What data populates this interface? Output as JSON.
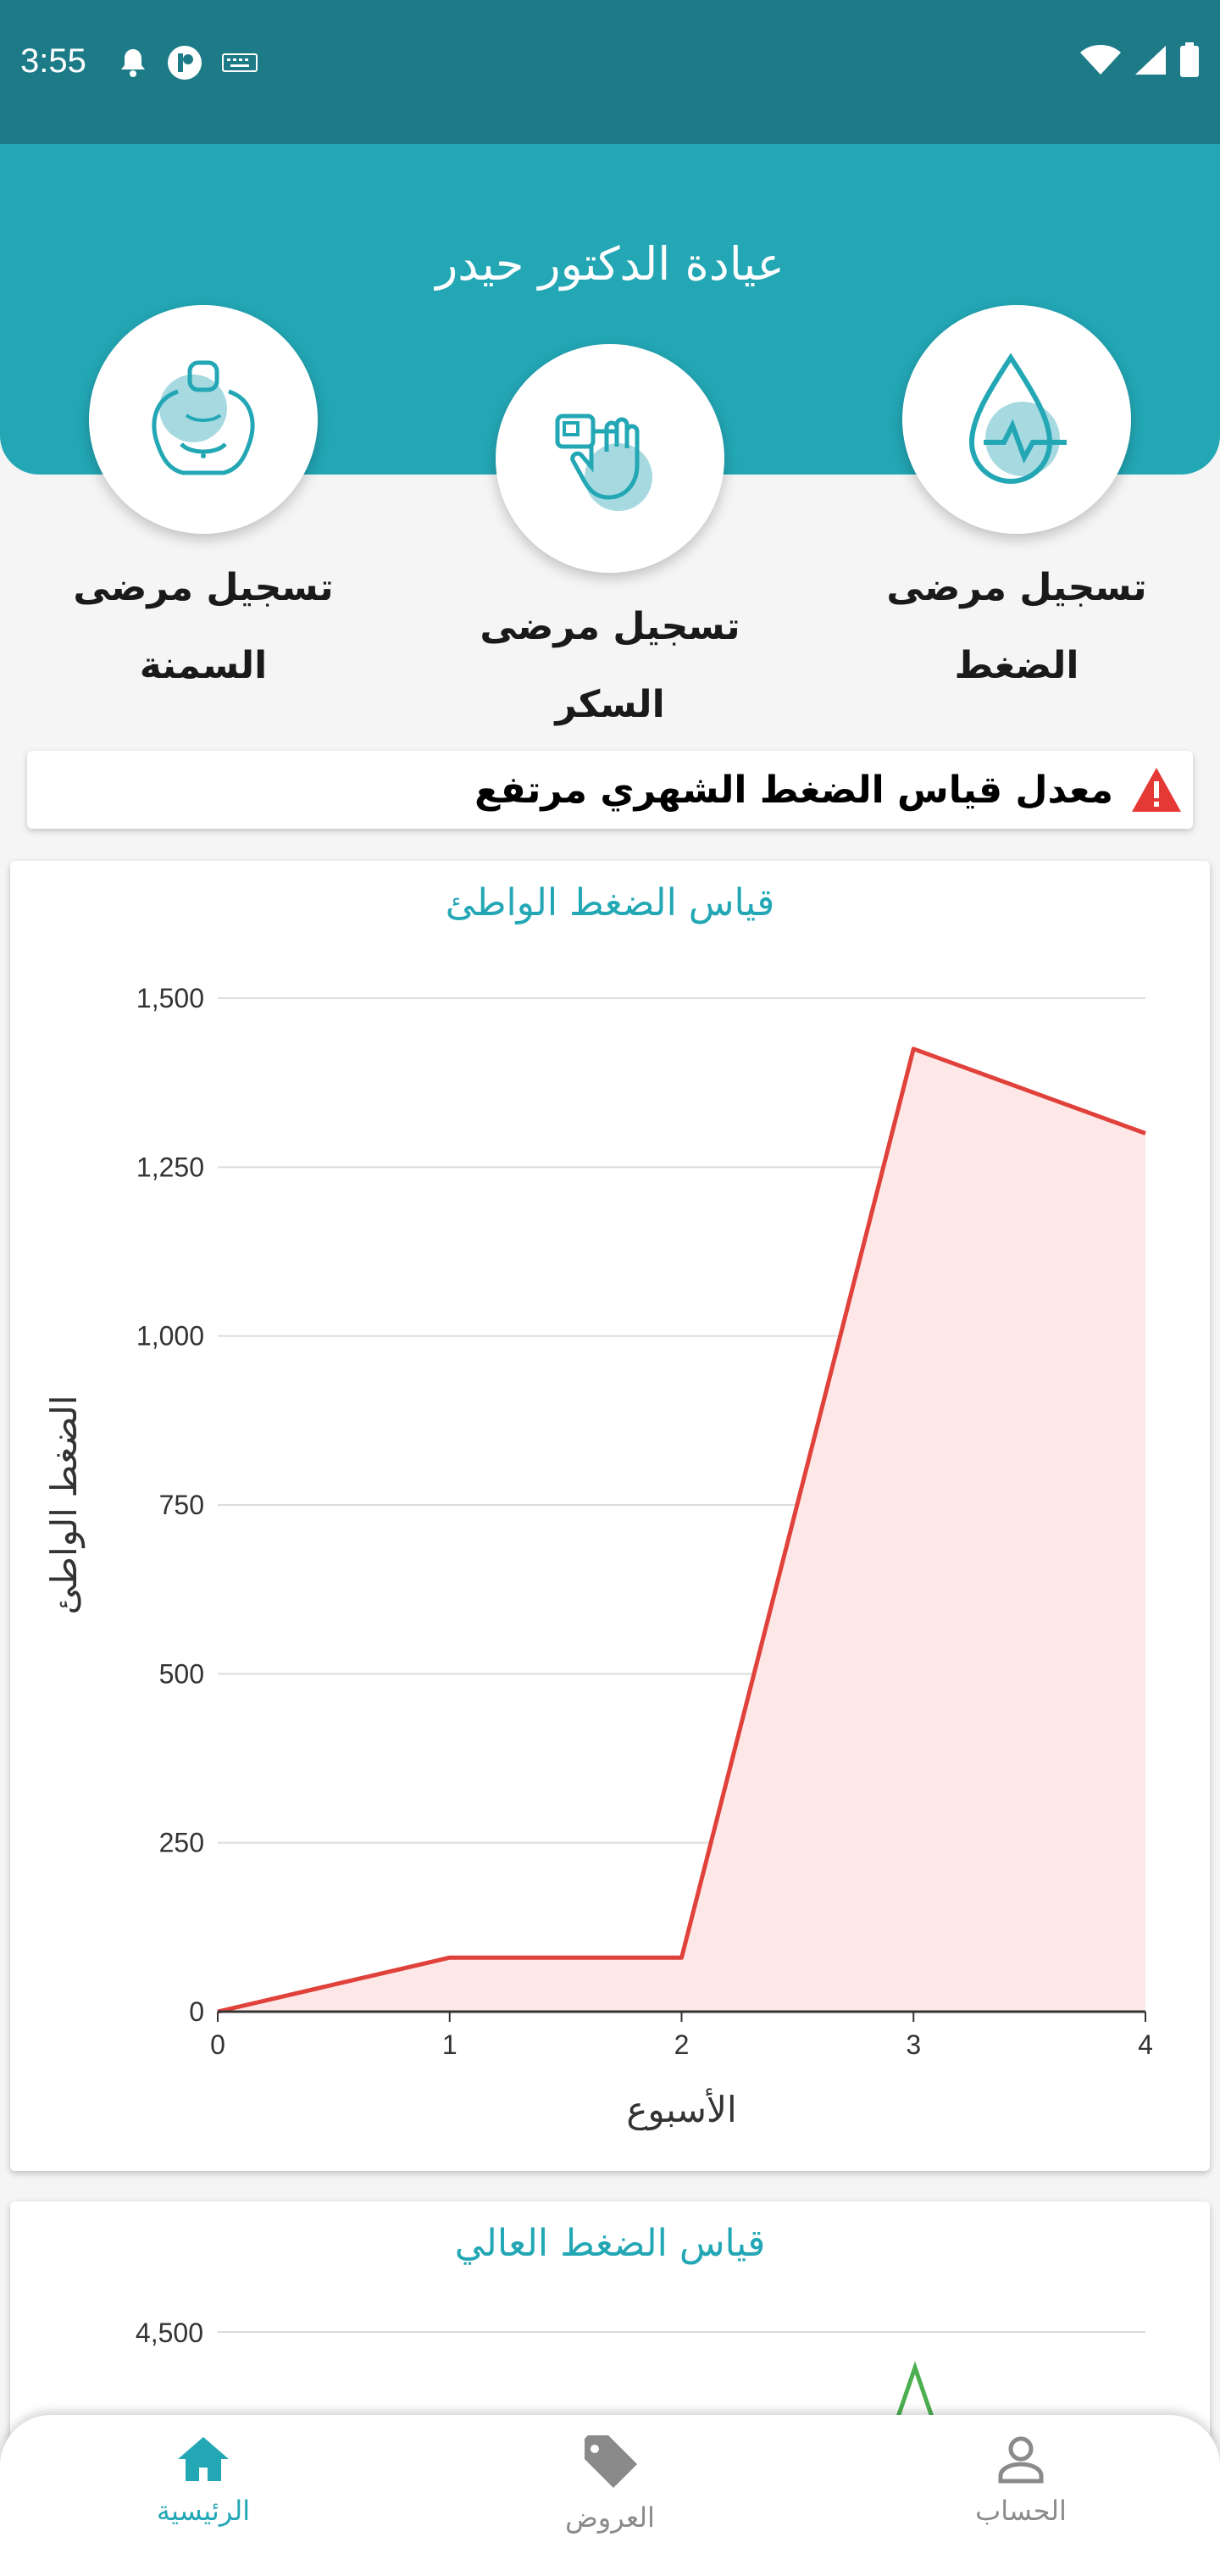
{
  "status_bar": {
    "time": "3:55",
    "left_icons": [
      "bell-icon",
      "app-icon",
      "keyboard-icon"
    ],
    "right_icons": [
      "wifi-icon",
      "signal-icon",
      "battery-icon"
    ]
  },
  "header": {
    "title": "عيادة الدكتور حيدر"
  },
  "categories": [
    {
      "line1": "تسجيل مرضى",
      "line2": "الضغط",
      "icon": "blood-drop-pulse-icon"
    },
    {
      "line1": "تسجيل مرضى السكر",
      "line2": "",
      "icon": "glucometer-hand-icon"
    },
    {
      "line1": "تسجيل مرضى",
      "line2": "السمنة",
      "icon": "obese-body-icon"
    }
  ],
  "alert": {
    "text": "معدل قياس الضغط الشهري مرتفع",
    "icon": "warning-triangle-icon"
  },
  "colors": {
    "primary": "#23a7b5",
    "status_bar": "#1d7b88",
    "line_red": "#e0413a",
    "fill_red": "#fde8e7",
    "line_green": "#4caf50",
    "alert_red": "#e53935"
  },
  "chart_data": [
    {
      "type": "area",
      "title": "قياس الضغط الواطئ",
      "xlabel": "الأسبوع",
      "ylabel": "الضغط الواطئ",
      "x": [
        0,
        1,
        2,
        3,
        4
      ],
      "series": [
        {
          "values": [
            0,
            80,
            80,
            1425,
            1300
          ]
        }
      ],
      "xlim": [
        0,
        4
      ],
      "ylim": [
        0,
        1500
      ],
      "yticks": [
        0,
        250,
        500,
        750,
        1000,
        1250,
        1500
      ],
      "ytick_labels": [
        "0",
        "250",
        "500",
        "750",
        "1,000",
        "1,250",
        "1,500"
      ],
      "xtick_labels": [
        "0",
        "1",
        "2",
        "3",
        "4"
      ],
      "grid": true
    },
    {
      "type": "line",
      "title": "قياس الضغط العالي",
      "visible_ytick_labels": [
        "4,500"
      ],
      "grid": true
    }
  ],
  "bottom_nav": [
    {
      "label": "الرئيسية",
      "icon": "home-icon",
      "active": true
    },
    {
      "label": "العروض",
      "icon": "tag-icon",
      "active": false
    },
    {
      "label": "الحساب",
      "icon": "person-icon",
      "active": false
    }
  ]
}
